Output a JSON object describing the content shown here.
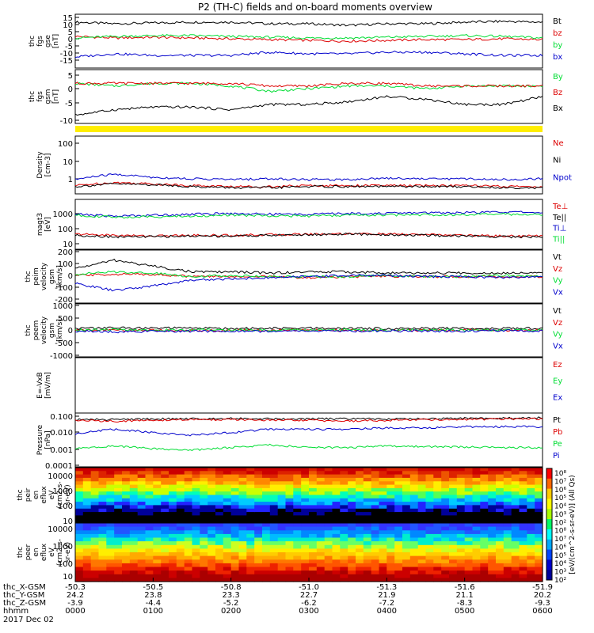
{
  "title": "P2 (TH-C) fields and on-board moments overview",
  "chart_data": [
    {
      "type": "line",
      "panel": "fgs",
      "ylabel": [
        "thc",
        "fgs",
        "gse",
        "[nT]"
      ],
      "yticks": [
        "15",
        "10",
        "5",
        "0",
        "-5",
        "-10",
        "-15"
      ],
      "ylim": [
        -15,
        15
      ],
      "x": [
        0,
        0.5,
        1,
        1.5,
        2,
        2.5,
        3,
        3.5,
        4,
        4.5,
        5,
        5.5,
        6
      ],
      "series": [
        {
          "name": "Bt",
          "color": "#000000",
          "values": [
            12,
            11,
            11.5,
            12,
            12,
            11,
            11,
            10,
            11,
            11,
            12,
            12.5,
            12
          ]
        },
        {
          "name": "bz",
          "color": "#dd0000",
          "values": [
            3,
            2,
            2.5,
            2,
            1.5,
            1,
            0.5,
            0,
            0.5,
            1,
            1,
            1.5,
            1
          ]
        },
        {
          "name": "by",
          "color": "#00dd33",
          "values": [
            2,
            3,
            3.5,
            3.5,
            3,
            2.5,
            2,
            2,
            2.5,
            3,
            3.5,
            3,
            2
          ]
        },
        {
          "name": "bx",
          "color": "#0000cc",
          "values": [
            -10,
            -8,
            -9,
            -9,
            -9,
            -7,
            -8,
            -8,
            -7,
            -7,
            -8,
            -9,
            -9
          ]
        }
      ]
    },
    {
      "type": "line",
      "panel": "fgs-gsm",
      "ylabel": [
        "thc",
        "fgs",
        "gsm",
        "[nT]"
      ],
      "yticks": [
        "5",
        "0",
        "-5",
        "-10"
      ],
      "ylim": [
        -12,
        6
      ],
      "x": [
        0,
        0.5,
        1,
        1.5,
        2,
        2.5,
        3,
        3.5,
        4,
        4.5,
        5,
        5.5,
        6
      ],
      "series": [
        {
          "name": "By",
          "color": "#00dd33",
          "values": [
            2,
            1,
            2,
            2,
            1,
            -1,
            0,
            1,
            1,
            0,
            1,
            1,
            1
          ]
        },
        {
          "name": "Bz",
          "color": "#dd0000",
          "values": [
            2,
            2,
            2,
            2,
            2,
            1,
            1,
            2,
            2,
            1,
            1,
            1,
            1
          ]
        },
        {
          "name": "Bx",
          "color": "#000000",
          "values": [
            -10,
            -8,
            -7,
            -7,
            -8,
            -6,
            -6,
            -5,
            -3,
            -4,
            -6,
            -6,
            -3
          ]
        }
      ]
    },
    {
      "type": "line",
      "panel": "density",
      "scale": "log",
      "ylabel": [
        "Density",
        "[cm-3]"
      ],
      "yticks": [
        "100",
        "10",
        "1"
      ],
      "ylim": [
        0.2,
        200
      ],
      "x": [
        0,
        0.5,
        1,
        1.5,
        2,
        2.5,
        3,
        3.5,
        4,
        4.5,
        5,
        5.5,
        6
      ],
      "series": [
        {
          "name": "Ne",
          "color": "#dd0000",
          "values": [
            0.4,
            0.6,
            0.5,
            0.4,
            0.35,
            0.35,
            0.4,
            0.4,
            0.4,
            0.4,
            0.4,
            0.35,
            0.35
          ]
        },
        {
          "name": "Ni",
          "color": "#000000",
          "values": [
            0.35,
            0.5,
            0.45,
            0.35,
            0.3,
            0.3,
            0.35,
            0.35,
            0.35,
            0.35,
            0.35,
            0.3,
            0.3
          ]
        },
        {
          "name": "Npot",
          "color": "#0000cc",
          "values": [
            0.9,
            1.8,
            1.2,
            1,
            0.9,
            1,
            0.9,
            0.9,
            1.1,
            1,
            1,
            0.9,
            1
          ]
        }
      ]
    },
    {
      "type": "line",
      "panel": "temperature",
      "scale": "log",
      "ylabel": [
        "magt3",
        "[eV]"
      ],
      "yticks": [
        "1000",
        "100",
        "10"
      ],
      "ylim": [
        15,
        4000
      ],
      "x": [
        0,
        0.5,
        1,
        1.5,
        2,
        2.5,
        3,
        3.5,
        4,
        4.5,
        5,
        5.5,
        6
      ],
      "series": [
        {
          "name": "Te⊥",
          "color": "#dd0000",
          "values": [
            70,
            60,
            55,
            60,
            60,
            65,
            70,
            75,
            70,
            65,
            60,
            55,
            55
          ]
        },
        {
          "name": "Te||",
          "color": "#000000",
          "values": [
            60,
            50,
            50,
            55,
            55,
            60,
            65,
            70,
            65,
            60,
            55,
            50,
            50
          ]
        },
        {
          "name": "Ti⊥",
          "color": "#0000cc",
          "values": [
            900,
            700,
            800,
            900,
            1000,
            900,
            900,
            1000,
            1000,
            1100,
            1100,
            1200,
            1100
          ]
        },
        {
          "name": "Ti||",
          "color": "#00dd33",
          "values": [
            800,
            600,
            650,
            700,
            800,
            750,
            700,
            800,
            800,
            850,
            850,
            900,
            850
          ]
        }
      ]
    },
    {
      "type": "line",
      "panel": "ion-velocity",
      "ylabel": [
        "thc",
        "peim",
        "velocity",
        "gsm",
        "[km/s]"
      ],
      "yticks": [
        "200",
        "100",
        "0",
        "-100",
        "-200"
      ],
      "ylim": [
        -200,
        200
      ],
      "x": [
        0,
        0.5,
        1,
        1.5,
        2,
        2.5,
        3,
        3.5,
        4,
        4.5,
        5,
        5.5,
        6
      ],
      "series": [
        {
          "name": "Vt",
          "color": "#000000",
          "values": [
            70,
            140,
            90,
            40,
            40,
            30,
            40,
            40,
            30,
            30,
            30,
            30,
            40
          ]
        },
        {
          "name": "Vz",
          "color": "#dd0000",
          "values": [
            10,
            20,
            20,
            0,
            0,
            0,
            -10,
            0,
            0,
            0,
            0,
            0,
            0
          ]
        },
        {
          "name": "Vy",
          "color": "#00dd33",
          "values": [
            20,
            40,
            30,
            0,
            10,
            0,
            0,
            0,
            10,
            0,
            0,
            10,
            0
          ]
        },
        {
          "name": "Vx",
          "color": "#0000cc",
          "values": [
            -60,
            -120,
            -80,
            -30,
            -20,
            -10,
            0,
            10,
            10,
            0,
            0,
            -10,
            0
          ]
        }
      ]
    },
    {
      "type": "line",
      "panel": "electron-velocity",
      "ylabel": [
        "thc",
        "peem",
        "velocity",
        "gsm",
        "[km/s]"
      ],
      "yticks": [
        "1000",
        "500",
        "0",
        "-500",
        "-1000"
      ],
      "ylim": [
        -1000,
        1000
      ],
      "x": [
        0,
        0.5,
        1,
        1.5,
        2,
        2.5,
        3,
        3.5,
        4,
        4.5,
        5,
        5.5,
        6
      ],
      "series": [
        {
          "name": "Vt",
          "color": "#000000",
          "values": [
            80,
            110,
            90,
            100,
            80,
            80,
            90,
            80,
            80,
            90,
            80,
            90,
            80
          ]
        },
        {
          "name": "Vz",
          "color": "#dd0000",
          "values": [
            0,
            10,
            0,
            -10,
            0,
            0,
            10,
            0,
            0,
            0,
            10,
            0,
            0
          ]
        },
        {
          "name": "Vy",
          "color": "#00dd33",
          "values": [
            20,
            30,
            20,
            10,
            20,
            10,
            20,
            20,
            10,
            20,
            10,
            10,
            20
          ]
        },
        {
          "name": "Vx",
          "color": "#0000cc",
          "values": [
            -40,
            -60,
            -50,
            -40,
            -30,
            -40,
            -30,
            -30,
            -20,
            -30,
            -30,
            -20,
            -30
          ]
        }
      ]
    },
    {
      "type": "line",
      "panel": "electric-field",
      "ylabel": [
        "E=-VxB",
        "[mV/m]"
      ],
      "yticks": [],
      "series": [
        {
          "name": "Ez",
          "color": "#dd0000",
          "values": []
        },
        {
          "name": "Ey",
          "color": "#00dd33",
          "values": []
        },
        {
          "name": "Ex",
          "color": "#0000cc",
          "values": []
        }
      ]
    },
    {
      "type": "line",
      "panel": "pressure",
      "scale": "log",
      "ylabel": [
        "Pressure",
        "[nPa]"
      ],
      "yticks": [
        "0.100",
        "0.010",
        "0.001",
        "0.0001"
      ],
      "ylim": [
        0.0001,
        0.15
      ],
      "x": [
        0,
        0.5,
        1,
        1.5,
        2,
        2.5,
        3,
        3.5,
        4,
        4.5,
        5,
        5.5,
        6
      ],
      "series": [
        {
          "name": "Pt",
          "color": "#000000",
          "values": [
            0.09,
            0.09,
            0.1,
            0.1,
            0.11,
            0.1,
            0.1,
            0.1,
            0.1,
            0.1,
            0.11,
            0.11,
            0.12
          ]
        },
        {
          "name": "Pb",
          "color": "#dd0000",
          "values": [
            0.08,
            0.07,
            0.08,
            0.09,
            0.09,
            0.08,
            0.08,
            0.07,
            0.08,
            0.09,
            0.09,
            0.1,
            0.1
          ]
        },
        {
          "name": "Pe",
          "color": "#00dd33",
          "values": [
            0.001,
            0.0015,
            0.001,
            0.0008,
            0.0012,
            0.0018,
            0.0012,
            0.0012,
            0.0015,
            0.0014,
            0.0013,
            0.0012,
            0.0012
          ]
        },
        {
          "name": "Pi",
          "color": "#0000cc",
          "values": [
            0.01,
            0.02,
            0.012,
            0.008,
            0.012,
            0.02,
            0.02,
            0.02,
            0.025,
            0.025,
            0.03,
            0.03,
            0.03
          ]
        }
      ]
    },
    {
      "type": "heatmap",
      "panel": "ion-spectrogram",
      "ylabel": [
        "thc",
        "peir",
        "en",
        "eflux",
        "eV",
        "(cm2-s-",
        "sr-eV)"
      ],
      "yticks": [
        "10000",
        "1000",
        "100",
        "10"
      ],
      "description": "ion energy-flux spectrogram; high flux (red/orange) around 1-10 keV, falling to green/blue below 100 eV"
    },
    {
      "type": "heatmap",
      "panel": "electron-spectrogram",
      "ylabel": [
        "thc",
        "peer",
        "en",
        "eflux",
        "eV",
        "(cm2-s-",
        "sr-eV)"
      ],
      "yticks": [
        "10000",
        "1000",
        "100",
        "10"
      ],
      "description": "electron energy-flux spectrogram; blue above a few keV, yellow/orange around 100 eV-1 keV, dark red below 30 eV"
    }
  ],
  "colorbar": {
    "label": "[eV/(cm^2-s-sr-eV)] (All Qs)",
    "ticks": [
      "10⁸",
      "10⁷",
      "10⁶",
      "10⁵",
      "10⁴",
      "10³",
      "10²",
      "10⁸",
      "10⁷",
      "10⁶",
      "10⁵",
      "10⁴",
      "10³",
      "10²"
    ]
  },
  "x_axis": {
    "rows": [
      {
        "label": "thc_X-GSM",
        "values": [
          "-50.3",
          "-50.5",
          "-50.8",
          "-51.0",
          "-51.3",
          "-51.6",
          "-51.9"
        ]
      },
      {
        "label": "thc_Y-GSM",
        "values": [
          "24.2",
          "23.8",
          "23.3",
          "22.7",
          "21.9",
          "21.1",
          "20.2"
        ]
      },
      {
        "label": "thc_Z-GSM",
        "values": [
          "-3.9",
          "-4.4",
          "-5.2",
          "-6.2",
          "-7.2",
          "-8.3",
          "-9.3"
        ]
      },
      {
        "label": "hhmm",
        "values": [
          "0000",
          "0100",
          "0200",
          "0300",
          "0400",
          "0500",
          "0600"
        ]
      }
    ],
    "date": "2017 Dec 02"
  }
}
